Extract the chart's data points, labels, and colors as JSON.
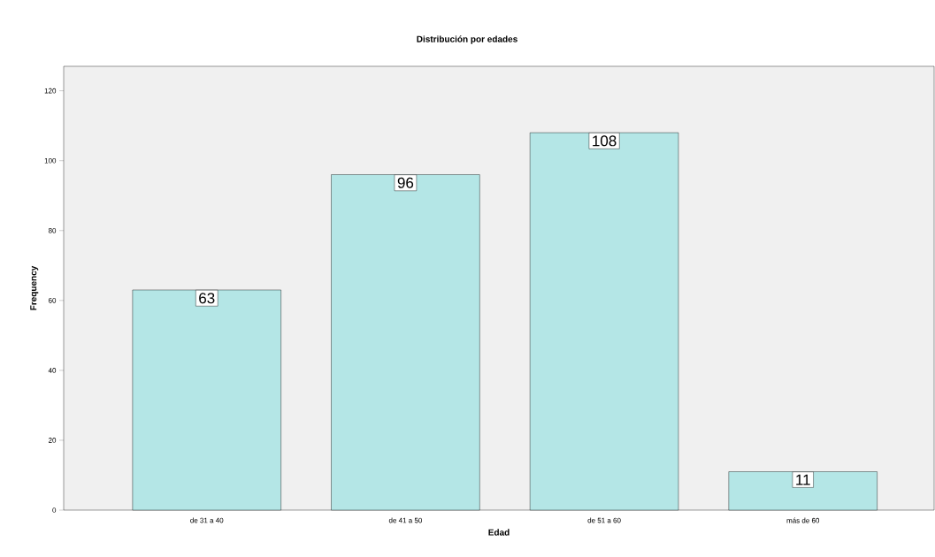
{
  "chart_data": {
    "type": "bar",
    "title": "Distribución por edades",
    "xlabel": "Edad",
    "ylabel": "Frequency",
    "categories": [
      "de 31 a 40",
      "de 41 a 50",
      "de 51 a 60",
      "más de 60"
    ],
    "values": [
      63,
      96,
      108,
      11
    ],
    "color": "#b4e6e6",
    "ylim": [
      0,
      127
    ],
    "yticks": [
      0,
      20,
      40,
      60,
      80,
      100,
      120
    ],
    "grid": false,
    "data_labels": true
  }
}
